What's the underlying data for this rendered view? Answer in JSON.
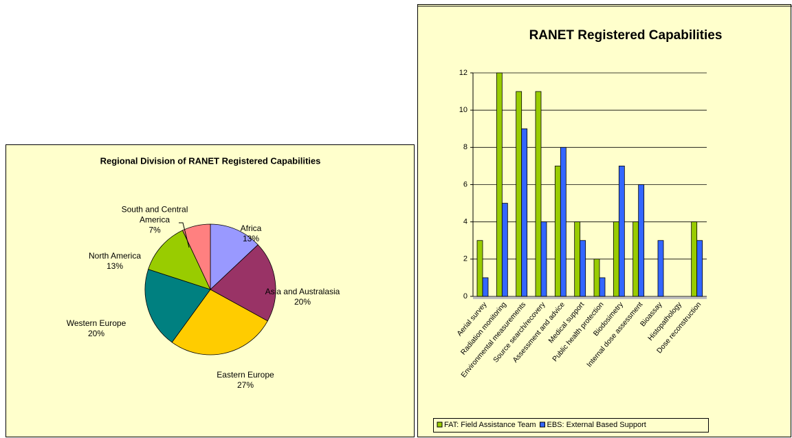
{
  "chart_data": [
    {
      "type": "pie",
      "title": "Regional Division of RANET Registered Capabilities",
      "categories": [
        "Africa",
        "Asia and Australasia",
        "Eastern Europe",
        "Western Europe",
        "North America",
        "South and Central America"
      ],
      "values": [
        13,
        20,
        27,
        20,
        13,
        7
      ],
      "value_labels": [
        "13%",
        "20%",
        "27%",
        "20%",
        "13%",
        "7%"
      ],
      "colors": [
        "#9999ff",
        "#993366",
        "#ffcc00",
        "#008080",
        "#99cc00",
        "#ff8080"
      ]
    },
    {
      "type": "bar",
      "title": "RANET Registered Capabilities",
      "categories": [
        "Aerial survey",
        "Radiation monitoring",
        "Environmental measurements",
        "Source search/recovery",
        "Assessment and advice",
        "Medical support",
        "Public health protection",
        "Biodosimetry",
        "Internal dose assessment",
        "Bioassay",
        "Histopathology",
        "Dose reconstruction"
      ],
      "series": [
        {
          "name": "FAT: Field Assistance Team",
          "color": "#99cc00",
          "values": [
            3,
            12,
            11,
            11,
            7,
            4,
            2,
            4,
            4,
            0,
            0,
            4
          ]
        },
        {
          "name": "EBS: External Based Support",
          "color": "#3366ff",
          "values": [
            1,
            5,
            9,
            4,
            8,
            3,
            1,
            7,
            6,
            3,
            0,
            3
          ]
        }
      ],
      "ylim": [
        0,
        12
      ],
      "yticks": [
        0,
        2,
        4,
        6,
        8,
        10,
        12
      ],
      "grid": true,
      "legend": "bottom"
    }
  ]
}
